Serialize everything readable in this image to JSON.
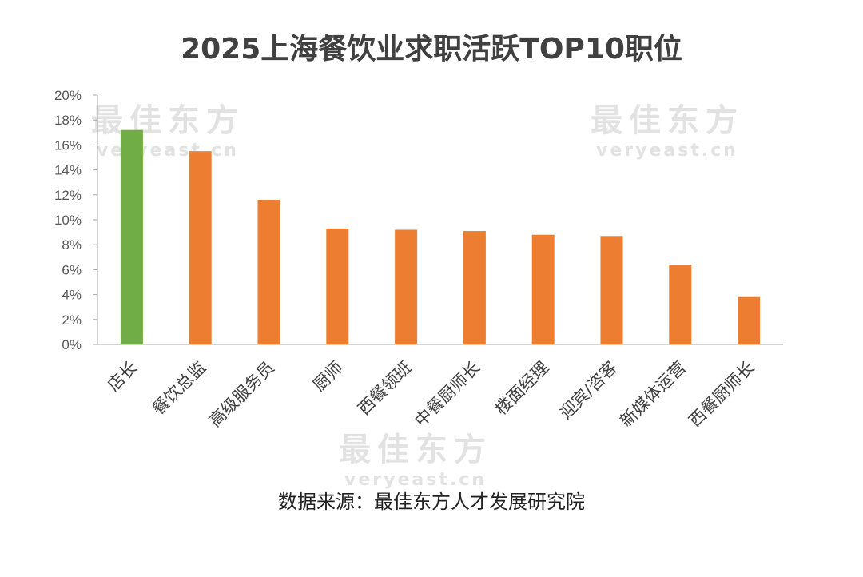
{
  "chart_data": {
    "type": "bar",
    "title": "2025上海餐饮业求职活跃TOP10职位",
    "categories": [
      "店长",
      "餐饮总监",
      "高级服务员",
      "厨师",
      "西餐领班",
      "中餐厨师长",
      "楼面经理",
      "迎宾/咨客",
      "新媒体运营",
      "西餐厨师长"
    ],
    "values": [
      17.2,
      15.5,
      11.6,
      9.3,
      9.2,
      9.1,
      8.8,
      8.7,
      6.4,
      3.8
    ],
    "unit": "%",
    "highlight_index": 0,
    "colors": {
      "highlight": "#70ad47",
      "default": "#ed7d31"
    },
    "ylim": [
      0,
      20
    ],
    "yticks": [
      "0%",
      "2%",
      "4%",
      "6%",
      "8%",
      "10%",
      "12%",
      "14%",
      "16%",
      "18%",
      "20%"
    ],
    "xlabel": "",
    "ylabel": "",
    "grid": false,
    "source": "数据来源：最佳东方人才发展研究院"
  },
  "watermark": {
    "cn": "最佳东方",
    "en": "veryeast.cn"
  }
}
